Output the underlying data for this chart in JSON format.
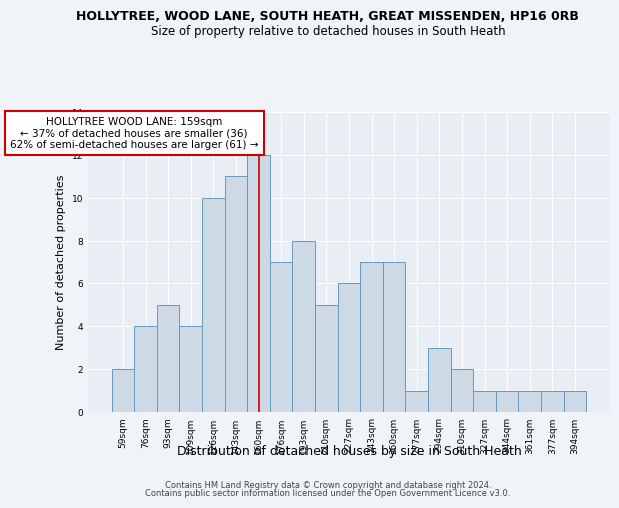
{
  "title1": "HOLLYTREE, WOOD LANE, SOUTH HEATH, GREAT MISSENDEN, HP16 0RB",
  "title2": "Size of property relative to detached houses in South Heath",
  "xlabel": "Distribution of detached houses by size in South Heath",
  "ylabel": "Number of detached properties",
  "categories": [
    "59sqm",
    "76sqm",
    "93sqm",
    "109sqm",
    "126sqm",
    "143sqm",
    "160sqm",
    "176sqm",
    "193sqm",
    "210sqm",
    "227sqm",
    "243sqm",
    "260sqm",
    "277sqm",
    "294sqm",
    "310sqm",
    "327sqm",
    "344sqm",
    "361sqm",
    "377sqm",
    "394sqm"
  ],
  "values": [
    2,
    4,
    5,
    4,
    10,
    11,
    12,
    7,
    8,
    5,
    6,
    7,
    7,
    1,
    3,
    2,
    1,
    1,
    1,
    1,
    1
  ],
  "bar_color": "#cdd9e5",
  "bar_edge_color": "#6699bb",
  "vline_x_index": 6,
  "vline_color": "#cc0000",
  "annotation_text": "HOLLYTREE WOOD LANE: 159sqm\n← 37% of detached houses are smaller (36)\n62% of semi-detached houses are larger (61) →",
  "annotation_box_color": "white",
  "annotation_box_edge": "#cc0000",
  "ylim": [
    0,
    14
  ],
  "yticks": [
    0,
    2,
    4,
    6,
    8,
    10,
    12,
    14
  ],
  "footer1": "Contains HM Land Registry data © Crown copyright and database right 2024.",
  "footer2": "Contains public sector information licensed under the Open Government Licence v3.0.",
  "bg_color": "#f0f4f8",
  "plot_bg_color": "#e8eef4"
}
